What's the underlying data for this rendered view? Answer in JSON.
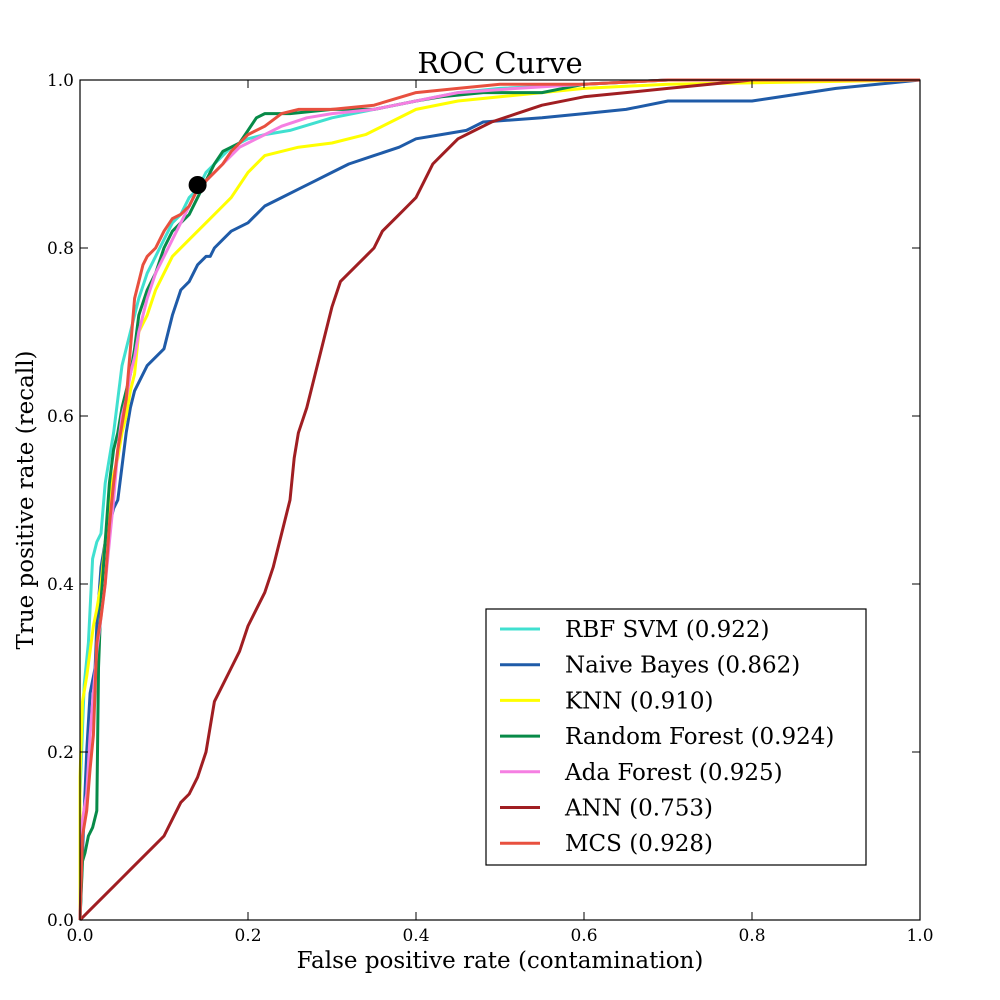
{
  "chart_data": {
    "type": "line",
    "title": "ROC Curve",
    "xlabel": "False positive rate (contamination)",
    "ylabel": "True positive rate (recall)",
    "xlim": [
      0.0,
      1.0
    ],
    "ylim": [
      0.0,
      1.0
    ],
    "x_ticks": [
      0.0,
      0.2,
      0.4,
      0.6,
      0.8,
      1.0
    ],
    "y_ticks": [
      0.0,
      0.2,
      0.4,
      0.6,
      0.8,
      1.0
    ],
    "x_tick_labels": [
      "0.0",
      "0.2",
      "0.4",
      "0.6",
      "0.8",
      "1.0"
    ],
    "y_tick_labels": [
      "0.0",
      "0.2",
      "0.4",
      "0.6",
      "0.8",
      "1.0"
    ],
    "grid": false,
    "legend_position": "lower-right",
    "series": [
      {
        "name": "RBF SVM (0.922)",
        "color": "#40E0D0",
        "points": [
          [
            0,
            0
          ],
          [
            0,
            0.15
          ],
          [
            0.005,
            0.28
          ],
          [
            0.01,
            0.33
          ],
          [
            0.015,
            0.43
          ],
          [
            0.02,
            0.45
          ],
          [
            0.025,
            0.46
          ],
          [
            0.03,
            0.52
          ],
          [
            0.035,
            0.55
          ],
          [
            0.04,
            0.58
          ],
          [
            0.045,
            0.62
          ],
          [
            0.05,
            0.66
          ],
          [
            0.055,
            0.68
          ],
          [
            0.06,
            0.7
          ],
          [
            0.07,
            0.74
          ],
          [
            0.08,
            0.77
          ],
          [
            0.09,
            0.79
          ],
          [
            0.1,
            0.81
          ],
          [
            0.11,
            0.83
          ],
          [
            0.12,
            0.84
          ],
          [
            0.13,
            0.86
          ],
          [
            0.14,
            0.87
          ],
          [
            0.15,
            0.89
          ],
          [
            0.16,
            0.9
          ],
          [
            0.18,
            0.92
          ],
          [
            0.2,
            0.93
          ],
          [
            0.22,
            0.935
          ],
          [
            0.25,
            0.94
          ],
          [
            0.3,
            0.955
          ],
          [
            0.35,
            0.965
          ],
          [
            0.4,
            0.975
          ],
          [
            0.45,
            0.985
          ],
          [
            0.5,
            0.99
          ],
          [
            0.6,
            0.995
          ],
          [
            0.7,
            1.0
          ],
          [
            1.0,
            1.0
          ]
        ]
      },
      {
        "name": "Naive Bayes (0.862)",
        "color": "#1F5BA8",
        "points": [
          [
            0,
            0
          ],
          [
            0.003,
            0.08
          ],
          [
            0.008,
            0.2
          ],
          [
            0.012,
            0.27
          ],
          [
            0.018,
            0.3
          ],
          [
            0.02,
            0.35
          ],
          [
            0.025,
            0.42
          ],
          [
            0.03,
            0.45
          ],
          [
            0.035,
            0.47
          ],
          [
            0.04,
            0.49
          ],
          [
            0.045,
            0.5
          ],
          [
            0.05,
            0.54
          ],
          [
            0.055,
            0.58
          ],
          [
            0.06,
            0.61
          ],
          [
            0.065,
            0.63
          ],
          [
            0.07,
            0.64
          ],
          [
            0.08,
            0.66
          ],
          [
            0.09,
            0.67
          ],
          [
            0.1,
            0.68
          ],
          [
            0.105,
            0.7
          ],
          [
            0.11,
            0.72
          ],
          [
            0.12,
            0.75
          ],
          [
            0.13,
            0.76
          ],
          [
            0.14,
            0.78
          ],
          [
            0.15,
            0.79
          ],
          [
            0.155,
            0.79
          ],
          [
            0.16,
            0.8
          ],
          [
            0.17,
            0.81
          ],
          [
            0.18,
            0.82
          ],
          [
            0.2,
            0.83
          ],
          [
            0.21,
            0.84
          ],
          [
            0.22,
            0.85
          ],
          [
            0.24,
            0.86
          ],
          [
            0.26,
            0.87
          ],
          [
            0.28,
            0.88
          ],
          [
            0.3,
            0.89
          ],
          [
            0.32,
            0.9
          ],
          [
            0.35,
            0.91
          ],
          [
            0.38,
            0.92
          ],
          [
            0.4,
            0.93
          ],
          [
            0.43,
            0.935
          ],
          [
            0.46,
            0.94
          ],
          [
            0.48,
            0.95
          ],
          [
            0.55,
            0.955
          ],
          [
            0.6,
            0.96
          ],
          [
            0.65,
            0.965
          ],
          [
            0.7,
            0.975
          ],
          [
            0.8,
            0.975
          ],
          [
            0.82,
            0.978
          ],
          [
            0.9,
            0.99
          ],
          [
            1.0,
            1.0
          ]
        ]
      },
      {
        "name": "KNN (0.910)",
        "color": "#FFFF00",
        "points": [
          [
            0,
            0
          ],
          [
            0,
            0.17
          ],
          [
            0.003,
            0.26
          ],
          [
            0.008,
            0.29
          ],
          [
            0.012,
            0.32
          ],
          [
            0.016,
            0.35
          ],
          [
            0.02,
            0.37
          ],
          [
            0.025,
            0.4
          ],
          [
            0.03,
            0.45
          ],
          [
            0.035,
            0.5
          ],
          [
            0.04,
            0.53
          ],
          [
            0.045,
            0.55
          ],
          [
            0.05,
            0.58
          ],
          [
            0.055,
            0.6
          ],
          [
            0.06,
            0.63
          ],
          [
            0.065,
            0.65
          ],
          [
            0.07,
            0.7
          ],
          [
            0.08,
            0.72
          ],
          [
            0.09,
            0.75
          ],
          [
            0.1,
            0.77
          ],
          [
            0.11,
            0.79
          ],
          [
            0.13,
            0.81
          ],
          [
            0.15,
            0.83
          ],
          [
            0.17,
            0.85
          ],
          [
            0.18,
            0.86
          ],
          [
            0.2,
            0.89
          ],
          [
            0.22,
            0.91
          ],
          [
            0.26,
            0.92
          ],
          [
            0.3,
            0.925
          ],
          [
            0.34,
            0.935
          ],
          [
            0.37,
            0.95
          ],
          [
            0.4,
            0.965
          ],
          [
            0.45,
            0.975
          ],
          [
            0.5,
            0.98
          ],
          [
            0.55,
            0.985
          ],
          [
            0.6,
            0.99
          ],
          [
            0.7,
            0.995
          ],
          [
            1.0,
            1.0
          ]
        ]
      },
      {
        "name": "Random Forest (0.924)",
        "color": "#078A48",
        "points": [
          [
            0,
            0
          ],
          [
            0.003,
            0.07
          ],
          [
            0.006,
            0.08
          ],
          [
            0.01,
            0.1
          ],
          [
            0.015,
            0.11
          ],
          [
            0.02,
            0.13
          ],
          [
            0.022,
            0.3
          ],
          [
            0.025,
            0.38
          ],
          [
            0.03,
            0.45
          ],
          [
            0.035,
            0.52
          ],
          [
            0.04,
            0.56
          ],
          [
            0.045,
            0.58
          ],
          [
            0.05,
            0.61
          ],
          [
            0.06,
            0.65
          ],
          [
            0.065,
            0.68
          ],
          [
            0.07,
            0.72
          ],
          [
            0.08,
            0.75
          ],
          [
            0.09,
            0.77
          ],
          [
            0.1,
            0.8
          ],
          [
            0.11,
            0.82
          ],
          [
            0.12,
            0.83
          ],
          [
            0.13,
            0.84
          ],
          [
            0.14,
            0.86
          ],
          [
            0.15,
            0.88
          ],
          [
            0.16,
            0.9
          ],
          [
            0.17,
            0.915
          ],
          [
            0.18,
            0.92
          ],
          [
            0.19,
            0.925
          ],
          [
            0.2,
            0.94
          ],
          [
            0.21,
            0.955
          ],
          [
            0.22,
            0.96
          ],
          [
            0.25,
            0.96
          ],
          [
            0.3,
            0.965
          ],
          [
            0.35,
            0.965
          ],
          [
            0.4,
            0.975
          ],
          [
            0.43,
            0.98
          ],
          [
            0.48,
            0.985
          ],
          [
            0.55,
            0.985
          ],
          [
            0.6,
            0.995
          ],
          [
            0.7,
            1.0
          ],
          [
            1.0,
            1.0
          ]
        ]
      },
      {
        "name": "Ada Forest (0.925)",
        "color": "#F57FE2",
        "points": [
          [
            0,
            0
          ],
          [
            0.003,
            0.12
          ],
          [
            0.008,
            0.15
          ],
          [
            0.012,
            0.22
          ],
          [
            0.016,
            0.27
          ],
          [
            0.02,
            0.32
          ],
          [
            0.025,
            0.36
          ],
          [
            0.03,
            0.4
          ],
          [
            0.035,
            0.45
          ],
          [
            0.04,
            0.5
          ],
          [
            0.045,
            0.56
          ],
          [
            0.05,
            0.6
          ],
          [
            0.055,
            0.62
          ],
          [
            0.06,
            0.65
          ],
          [
            0.065,
            0.67
          ],
          [
            0.07,
            0.7
          ],
          [
            0.08,
            0.74
          ],
          [
            0.09,
            0.77
          ],
          [
            0.1,
            0.79
          ],
          [
            0.11,
            0.81
          ],
          [
            0.12,
            0.83
          ],
          [
            0.13,
            0.85
          ],
          [
            0.14,
            0.87
          ],
          [
            0.15,
            0.88
          ],
          [
            0.16,
            0.89
          ],
          [
            0.17,
            0.9
          ],
          [
            0.18,
            0.91
          ],
          [
            0.19,
            0.92
          ],
          [
            0.2,
            0.925
          ],
          [
            0.22,
            0.935
          ],
          [
            0.24,
            0.945
          ],
          [
            0.27,
            0.955
          ],
          [
            0.3,
            0.96
          ],
          [
            0.35,
            0.965
          ],
          [
            0.4,
            0.975
          ],
          [
            0.45,
            0.985
          ],
          [
            0.52,
            0.99
          ],
          [
            0.6,
            0.995
          ],
          [
            0.7,
            1.0
          ],
          [
            1.0,
            1.0
          ]
        ]
      },
      {
        "name": "ANN (0.753)",
        "color": "#A01E22",
        "points": [
          [
            0,
            0
          ],
          [
            0.005,
            0.005
          ],
          [
            0.01,
            0.01
          ],
          [
            0.02,
            0.02
          ],
          [
            0.03,
            0.03
          ],
          [
            0.04,
            0.04
          ],
          [
            0.05,
            0.05
          ],
          [
            0.06,
            0.06
          ],
          [
            0.07,
            0.07
          ],
          [
            0.08,
            0.08
          ],
          [
            0.09,
            0.09
          ],
          [
            0.1,
            0.1
          ],
          [
            0.11,
            0.12
          ],
          [
            0.12,
            0.14
          ],
          [
            0.13,
            0.15
          ],
          [
            0.14,
            0.17
          ],
          [
            0.15,
            0.2
          ],
          [
            0.155,
            0.23
          ],
          [
            0.16,
            0.26
          ],
          [
            0.17,
            0.28
          ],
          [
            0.18,
            0.3
          ],
          [
            0.19,
            0.32
          ],
          [
            0.2,
            0.35
          ],
          [
            0.21,
            0.37
          ],
          [
            0.22,
            0.39
          ],
          [
            0.23,
            0.42
          ],
          [
            0.24,
            0.46
          ],
          [
            0.25,
            0.5
          ],
          [
            0.255,
            0.55
          ],
          [
            0.26,
            0.58
          ],
          [
            0.27,
            0.61
          ],
          [
            0.28,
            0.65
          ],
          [
            0.29,
            0.69
          ],
          [
            0.3,
            0.73
          ],
          [
            0.31,
            0.76
          ],
          [
            0.32,
            0.77
          ],
          [
            0.33,
            0.78
          ],
          [
            0.34,
            0.79
          ],
          [
            0.35,
            0.8
          ],
          [
            0.36,
            0.82
          ],
          [
            0.37,
            0.83
          ],
          [
            0.38,
            0.84
          ],
          [
            0.39,
            0.85
          ],
          [
            0.4,
            0.86
          ],
          [
            0.41,
            0.88
          ],
          [
            0.42,
            0.9
          ],
          [
            0.43,
            0.91
          ],
          [
            0.44,
            0.92
          ],
          [
            0.45,
            0.93
          ],
          [
            0.47,
            0.94
          ],
          [
            0.49,
            0.95
          ],
          [
            0.52,
            0.96
          ],
          [
            0.55,
            0.97
          ],
          [
            0.6,
            0.98
          ],
          [
            0.65,
            0.985
          ],
          [
            0.7,
            0.99
          ],
          [
            0.75,
            0.995
          ],
          [
            0.8,
            1.0
          ],
          [
            1.0,
            1.0
          ]
        ]
      },
      {
        "name": "MCS (0.928)",
        "color": "#E8503F",
        "points": [
          [
            0,
            0
          ],
          [
            0.003,
            0.1
          ],
          [
            0.008,
            0.13
          ],
          [
            0.012,
            0.18
          ],
          [
            0.016,
            0.22
          ],
          [
            0.02,
            0.33
          ],
          [
            0.025,
            0.36
          ],
          [
            0.03,
            0.4
          ],
          [
            0.035,
            0.47
          ],
          [
            0.04,
            0.52
          ],
          [
            0.045,
            0.56
          ],
          [
            0.05,
            0.59
          ],
          [
            0.055,
            0.62
          ],
          [
            0.06,
            0.68
          ],
          [
            0.065,
            0.74
          ],
          [
            0.07,
            0.76
          ],
          [
            0.075,
            0.78
          ],
          [
            0.08,
            0.79
          ],
          [
            0.09,
            0.8
          ],
          [
            0.1,
            0.82
          ],
          [
            0.11,
            0.835
          ],
          [
            0.12,
            0.84
          ],
          [
            0.13,
            0.85
          ],
          [
            0.14,
            0.87
          ],
          [
            0.15,
            0.88
          ],
          [
            0.16,
            0.89
          ],
          [
            0.17,
            0.9
          ],
          [
            0.18,
            0.915
          ],
          [
            0.19,
            0.925
          ],
          [
            0.2,
            0.935
          ],
          [
            0.22,
            0.945
          ],
          [
            0.24,
            0.96
          ],
          [
            0.26,
            0.965
          ],
          [
            0.3,
            0.965
          ],
          [
            0.35,
            0.97
          ],
          [
            0.4,
            0.985
          ],
          [
            0.45,
            0.99
          ],
          [
            0.5,
            0.995
          ],
          [
            0.6,
            0.995
          ],
          [
            0.7,
            1.0
          ],
          [
            1.0,
            1.0
          ]
        ]
      }
    ],
    "marker": {
      "x": 0.14,
      "y": 0.875,
      "color": "#000000"
    }
  }
}
